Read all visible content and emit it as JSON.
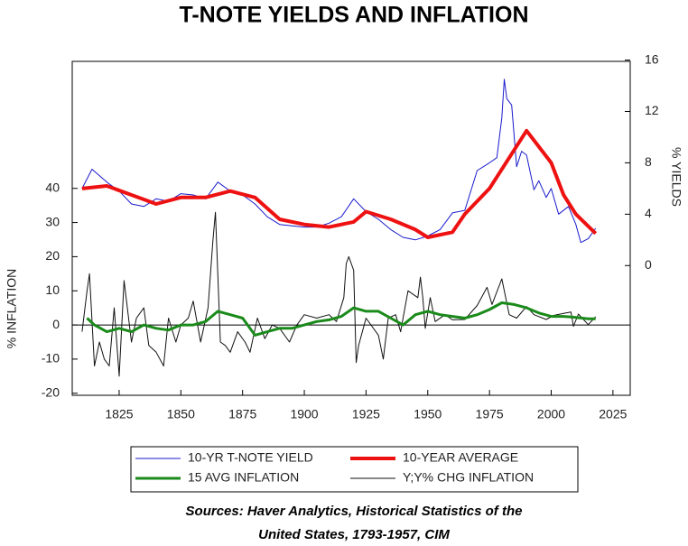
{
  "chart_data": {
    "type": "line",
    "title": "T-NOTE YIELDS AND INFLATION",
    "ylabel": "% INFLATION",
    "y2label": "% YIELDS",
    "notes": [
      "Sources:  Haver Analytics, Historical Statistics of the",
      "United States, 1793-1957, CIM"
    ],
    "xlim": [
      1806,
      2032
    ],
    "xticks": [
      1825,
      1850,
      1875,
      1900,
      1925,
      1950,
      1975,
      2000,
      2025
    ],
    "ylim": [
      -20.6,
      77.2
    ],
    "yticks": [
      -20,
      -10,
      0,
      10,
      20,
      30,
      40
    ],
    "y2lim": [
      -10.1,
      15.9
    ],
    "y2ticks": [
      0,
      4,
      8,
      12,
      16
    ],
    "series": [
      {
        "name": "10-YR T-NOTE YIELD",
        "color": "#1a1acc",
        "width": 1,
        "axis": "y2",
        "x": [
          1810,
          1814,
          1820,
          1825,
          1830,
          1835,
          1840,
          1845,
          1850,
          1855,
          1860,
          1865,
          1870,
          1875,
          1880,
          1885,
          1890,
          1895,
          1900,
          1905,
          1910,
          1915,
          1920,
          1925,
          1930,
          1935,
          1940,
          1945,
          1950,
          1955,
          1960,
          1965,
          1970,
          1975,
          1978,
          1980,
          1981,
          1982,
          1984,
          1986,
          1988,
          1990,
          1993,
          1995,
          1998,
          2000,
          2003,
          2007,
          2010,
          2012,
          2015,
          2018
        ],
        "values": [
          6,
          7.5,
          6.5,
          5.8,
          4.8,
          4.6,
          5.2,
          5.0,
          5.6,
          5.5,
          5.2,
          6.5,
          5.8,
          5.5,
          4.8,
          3.8,
          3.2,
          3.1,
          3.0,
          3.0,
          3.3,
          3.8,
          5.2,
          4.2,
          3.6,
          2.8,
          2.2,
          2.0,
          2.3,
          2.8,
          4.1,
          4.3,
          7.4,
          8.0,
          8.4,
          11.5,
          14.5,
          13.0,
          12.5,
          7.7,
          8.9,
          8.6,
          5.9,
          6.6,
          5.3,
          6.0,
          4.0,
          4.6,
          3.2,
          1.8,
          2.1,
          2.9
        ]
      },
      {
        "name": "10-YEAR AVERAGE",
        "color": "#ee1111",
        "width": 4,
        "axis": "y2",
        "x": [
          1810,
          1820,
          1830,
          1840,
          1850,
          1860,
          1870,
          1880,
          1890,
          1900,
          1910,
          1920,
          1925,
          1935,
          1945,
          1950,
          1960,
          1965,
          1975,
          1985,
          1990,
          2000,
          2005,
          2010,
          2018
        ],
        "values": [
          6,
          6.2,
          5.5,
          4.8,
          5.3,
          5.3,
          5.8,
          5.3,
          3.6,
          3.2,
          3.0,
          3.4,
          4.2,
          3.6,
          2.8,
          2.2,
          2.6,
          4.0,
          6.0,
          9.0,
          10.5,
          8.0,
          5.5,
          4.0,
          2.5
        ]
      },
      {
        "name": "15 AVG INFLATION",
        "color": "#1a8a1a",
        "width": 3,
        "x": [
          1812,
          1815,
          1820,
          1825,
          1830,
          1835,
          1840,
          1845,
          1850,
          1855,
          1860,
          1865,
          1870,
          1875,
          1880,
          1885,
          1890,
          1895,
          1900,
          1905,
          1910,
          1915,
          1920,
          1925,
          1930,
          1935,
          1940,
          1945,
          1950,
          1955,
          1960,
          1965,
          1970,
          1975,
          1980,
          1985,
          1990,
          1995,
          2000,
          2005,
          2010,
          2015,
          2018
        ],
        "values": [
          2,
          0,
          -2,
          -1,
          -2,
          0,
          -1,
          -1.5,
          0,
          0,
          1,
          4,
          3,
          2,
          -3,
          -2,
          -1,
          -1,
          0,
          1,
          1.5,
          2.5,
          5,
          4,
          4,
          2,
          0,
          3,
          4,
          3,
          2.5,
          2,
          3,
          4.5,
          6.5,
          6,
          5,
          3.5,
          2.5,
          2.5,
          2.2,
          1.8,
          1.8
        ]
      },
      {
        "name": "Y;Y% CHG INFLATION",
        "color": "#111111",
        "width": 1,
        "x": [
          1810,
          1812,
          1813,
          1815,
          1817,
          1819,
          1821,
          1823,
          1825,
          1827,
          1830,
          1832,
          1835,
          1837,
          1840,
          1843,
          1845,
          1848,
          1850,
          1853,
          1855,
          1858,
          1861,
          1863,
          1864,
          1866,
          1868,
          1870,
          1873,
          1876,
          1878,
          1881,
          1884,
          1887,
          1890,
          1894,
          1897,
          1900,
          1905,
          1910,
          1913,
          1916,
          1917,
          1918,
          1920,
          1921,
          1922,
          1925,
          1930,
          1932,
          1934,
          1937,
          1939,
          1942,
          1946,
          1947,
          1948,
          1949,
          1951,
          1953,
          1957,
          1960,
          1965,
          1970,
          1974,
          1976,
          1980,
          1983,
          1986,
          1990,
          1993,
          1998,
          2001,
          2005,
          2008,
          2009,
          2011,
          2015,
          2018
        ],
        "values": [
          -2,
          10,
          15,
          -12,
          -5,
          -10,
          -12,
          5,
          -15,
          13,
          -5,
          2,
          5,
          -6,
          -8,
          -12,
          2,
          -5,
          0,
          2,
          7,
          -5,
          5,
          25,
          33,
          -5,
          -6,
          -8,
          -2,
          -5,
          -8,
          2,
          -4,
          0,
          -1,
          -5,
          0,
          3,
          2,
          3,
          1,
          8,
          18,
          20,
          16,
          -11,
          -6,
          2,
          -3,
          -10,
          2,
          3,
          -2,
          10,
          8,
          14,
          8,
          -1,
          8,
          1,
          3,
          1.5,
          1.6,
          5.7,
          11,
          6,
          13.5,
          3,
          2,
          5.4,
          3,
          1.6,
          2.8,
          3.4,
          3.8,
          -0.4,
          3.2,
          0.1,
          2.4
        ]
      }
    ]
  }
}
